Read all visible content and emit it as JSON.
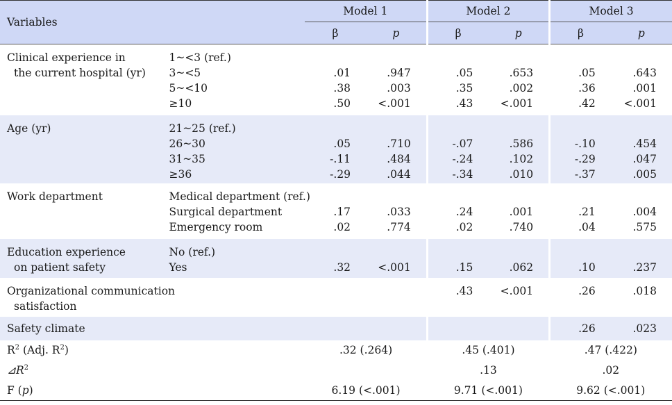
{
  "header": {
    "variables_label": "Variables",
    "models": [
      "Model 1",
      "Model 2",
      "Model 3"
    ],
    "beta": "β",
    "p": "p"
  },
  "groups": [
    {
      "variable_lines": [
        "Clinical experience in",
        "  the current hospital (yr)"
      ],
      "categories": [
        "1~<3 (ref.)",
        "3~<5",
        "5~<10",
        "≥10"
      ],
      "values": [
        [
          "",
          "",
          "",
          "",
          "",
          ""
        ],
        [
          ".01",
          ".947",
          ".05",
          ".653",
          ".05",
          ".643"
        ],
        [
          ".38",
          ".003",
          ".35",
          ".002",
          ".36",
          ".001"
        ],
        [
          ".50",
          "<.001",
          ".43",
          "<.001",
          ".42",
          "<.001"
        ]
      ],
      "shaded": false
    },
    {
      "variable_lines": [
        "Age (yr)"
      ],
      "categories": [
        "21~25 (ref.)",
        "26~30",
        "31~35",
        "≥36"
      ],
      "values": [
        [
          "",
          "",
          "",
          "",
          "",
          ""
        ],
        [
          ".05",
          ".710",
          "-.07",
          ".586",
          "-.10",
          ".454"
        ],
        [
          "-.11",
          ".484",
          "-.24",
          ".102",
          "-.29",
          ".047"
        ],
        [
          "-.29",
          ".044",
          "-.34",
          ".010",
          "-.37",
          ".005"
        ]
      ],
      "shaded": true
    },
    {
      "variable_lines": [
        "Work department"
      ],
      "categories": [
        "Medical department (ref.)",
        "Surgical department",
        "Emergency room"
      ],
      "values": [
        [
          "",
          "",
          "",
          "",
          "",
          ""
        ],
        [
          ".17",
          ".033",
          ".24",
          ".001",
          ".21",
          ".004"
        ],
        [
          ".02",
          ".774",
          ".02",
          ".740",
          ".04",
          ".575"
        ]
      ],
      "shaded": false
    },
    {
      "variable_lines": [
        "Education experience",
        "  on patient safety"
      ],
      "categories": [
        "No (ref.)",
        "Yes"
      ],
      "values": [
        [
          "",
          "",
          "",
          "",
          "",
          ""
        ],
        [
          ".32",
          "<.001",
          ".15",
          ".062",
          ".10",
          ".237"
        ]
      ],
      "shaded": true
    },
    {
      "variable_lines": [
        "Organizational communication",
        "  satisfaction"
      ],
      "categories": [
        ""
      ],
      "values": [
        [
          "",
          "",
          ".43",
          "<.001",
          ".26",
          ".018"
        ]
      ],
      "shaded": false
    },
    {
      "variable_lines": [
        "Safety climate"
      ],
      "categories": [
        ""
      ],
      "values": [
        [
          "",
          "",
          "",
          "",
          ".26",
          ".023"
        ]
      ],
      "shaded": true
    }
  ],
  "summary": {
    "r2_label": "R",
    "r2_adj_label": " (Adj. R",
    "r2_close": ")",
    "r2_values": [
      ".32 (.264)",
      ".45 (.401)",
      ".47 (.422)"
    ],
    "delta_label": "⊿R",
    "delta_values": [
      "",
      ".13",
      ".02"
    ],
    "f_label": "F (",
    "f_p": "p",
    "f_close": ")",
    "f_values": [
      "6.19 (<.001)",
      "9.71 (<.001)",
      "9.62 (<.001)"
    ]
  }
}
